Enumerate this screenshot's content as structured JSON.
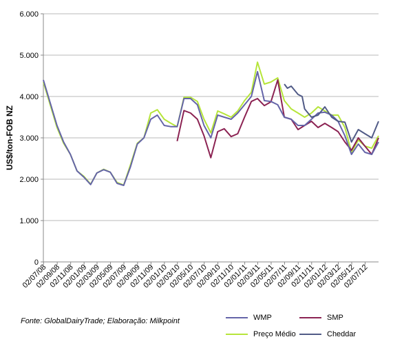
{
  "chart_data": {
    "type": "line",
    "ylabel": "US$/ton-FOB NZ",
    "ylim": [
      0,
      6000
    ],
    "yticks": [
      "0",
      "1.000",
      "2.000",
      "3.000",
      "4.000",
      "5.000",
      "6.000"
    ],
    "xlim": [
      "2008-07-01",
      "2012-09-01"
    ],
    "xtick_labels": [
      "02/07/08",
      "02/09/08",
      "02/11/08",
      "02/01/09",
      "02/03/09",
      "02/05/09",
      "02/07/09",
      "02/09/09",
      "02/11/09",
      "02/01/10",
      "02/03/10",
      "02/05/10",
      "02/07/10",
      "02/09/10",
      "02/11/10",
      "02/01/11",
      "02/03/11",
      "02/05/11",
      "02/07/11",
      "02/09/11",
      "02/11/11",
      "02/01/12",
      "02/03/12",
      "02/05/12",
      "02/07/12"
    ],
    "xtick_dates": [
      "2008-07-02",
      "2008-09-02",
      "2008-11-02",
      "2009-01-02",
      "2009-03-02",
      "2009-05-02",
      "2009-07-02",
      "2009-09-02",
      "2009-11-02",
      "2010-01-02",
      "2010-03-02",
      "2010-05-02",
      "2010-07-02",
      "2010-09-02",
      "2010-11-02",
      "2011-01-02",
      "2011-03-02",
      "2011-05-02",
      "2011-07-02",
      "2011-09-02",
      "2011-11-02",
      "2012-01-02",
      "2012-03-02",
      "2012-05-02",
      "2012-07-02"
    ],
    "legend_placement": "bottom",
    "grid": true,
    "series": [
      {
        "name": "WMP",
        "color": "#6464a8",
        "points": [
          [
            "2008-07-01",
            4400
          ],
          [
            "2008-08-01",
            3850
          ],
          [
            "2008-09-01",
            3300
          ],
          [
            "2008-10-01",
            2900
          ],
          [
            "2008-11-01",
            2600
          ],
          [
            "2008-12-01",
            2200
          ],
          [
            "2009-01-01",
            2050
          ],
          [
            "2009-02-01",
            1870
          ],
          [
            "2009-03-01",
            2150
          ],
          [
            "2009-04-01",
            2230
          ],
          [
            "2009-05-01",
            2170
          ],
          [
            "2009-06-01",
            1900
          ],
          [
            "2009-07-01",
            1850
          ],
          [
            "2009-08-01",
            2300
          ],
          [
            "2009-09-01",
            2850
          ],
          [
            "2009-10-01",
            3000
          ],
          [
            "2009-11-01",
            3450
          ],
          [
            "2009-12-01",
            3550
          ],
          [
            "2010-01-01",
            3300
          ],
          [
            "2010-02-01",
            3270
          ],
          [
            "2010-03-01",
            3270
          ],
          [
            "2010-04-01",
            3950
          ],
          [
            "2010-05-01",
            3950
          ],
          [
            "2010-06-01",
            3800
          ],
          [
            "2010-07-01",
            3300
          ],
          [
            "2010-08-01",
            3000
          ],
          [
            "2010-09-01",
            3550
          ],
          [
            "2010-10-01",
            3500
          ],
          [
            "2010-11-01",
            3450
          ],
          [
            "2010-12-01",
            3600
          ],
          [
            "2011-01-01",
            3800
          ],
          [
            "2011-02-01",
            4000
          ],
          [
            "2011-03-01",
            4600
          ],
          [
            "2011-04-01",
            3900
          ],
          [
            "2011-05-01",
            3880
          ],
          [
            "2011-06-01",
            3800
          ],
          [
            "2011-07-01",
            3500
          ],
          [
            "2011-08-01",
            3450
          ],
          [
            "2011-09-01",
            3300
          ],
          [
            "2011-10-01",
            3300
          ],
          [
            "2011-11-01",
            3450
          ],
          [
            "2011-12-01",
            3600
          ],
          [
            "2012-01-01",
            3620
          ],
          [
            "2012-02-01",
            3550
          ],
          [
            "2012-03-01",
            3400
          ],
          [
            "2012-04-01",
            3050
          ],
          [
            "2012-05-01",
            2600
          ],
          [
            "2012-06-01",
            2850
          ],
          [
            "2012-07-01",
            2650
          ],
          [
            "2012-08-01",
            2600
          ],
          [
            "2012-09-01",
            2900
          ]
        ]
      },
      {
        "name": "SMP",
        "color": "#8b2252",
        "points": [
          [
            "2010-03-01",
            2920
          ],
          [
            "2010-04-01",
            3660
          ],
          [
            "2010-05-01",
            3600
          ],
          [
            "2010-06-01",
            3450
          ],
          [
            "2010-07-01",
            3050
          ],
          [
            "2010-08-01",
            2520
          ],
          [
            "2010-09-01",
            3150
          ],
          [
            "2010-10-01",
            3220
          ],
          [
            "2010-11-01",
            3030
          ],
          [
            "2010-12-01",
            3100
          ],
          [
            "2011-01-01",
            3500
          ],
          [
            "2011-02-01",
            3880
          ],
          [
            "2011-03-01",
            3950
          ],
          [
            "2011-04-01",
            3780
          ],
          [
            "2011-05-01",
            3870
          ],
          [
            "2011-06-01",
            4400
          ],
          [
            "2011-07-01",
            3500
          ],
          [
            "2011-08-01",
            3450
          ],
          [
            "2011-09-01",
            3200
          ],
          [
            "2011-10-01",
            3300
          ],
          [
            "2011-11-01",
            3400
          ],
          [
            "2011-12-01",
            3250
          ],
          [
            "2012-01-01",
            3350
          ],
          [
            "2012-02-01",
            3250
          ],
          [
            "2012-03-01",
            3150
          ],
          [
            "2012-04-01",
            2900
          ],
          [
            "2012-05-01",
            2700
          ],
          [
            "2012-06-01",
            3000
          ],
          [
            "2012-07-01",
            2800
          ],
          [
            "2012-08-01",
            2600
          ],
          [
            "2012-09-01",
            3000
          ]
        ]
      },
      {
        "name": "Preço Médio",
        "color": "#b6e53a",
        "points": [
          [
            "2008-07-01",
            4350
          ],
          [
            "2008-08-01",
            3800
          ],
          [
            "2008-09-01",
            3250
          ],
          [
            "2008-10-01",
            2870
          ],
          [
            "2008-11-01",
            2600
          ],
          [
            "2008-12-01",
            2200
          ],
          [
            "2009-01-01",
            2070
          ],
          [
            "2009-02-01",
            1880
          ],
          [
            "2009-03-01",
            2150
          ],
          [
            "2009-04-01",
            2240
          ],
          [
            "2009-05-01",
            2170
          ],
          [
            "2009-06-01",
            1920
          ],
          [
            "2009-07-01",
            1860
          ],
          [
            "2009-08-01",
            2350
          ],
          [
            "2009-09-01",
            2870
          ],
          [
            "2009-10-01",
            3000
          ],
          [
            "2009-11-01",
            3600
          ],
          [
            "2009-12-01",
            3680
          ],
          [
            "2010-01-01",
            3450
          ],
          [
            "2010-02-01",
            3350
          ],
          [
            "2010-03-01",
            3270
          ],
          [
            "2010-04-01",
            3980
          ],
          [
            "2010-05-01",
            3980
          ],
          [
            "2010-06-01",
            3880
          ],
          [
            "2010-07-01",
            3450
          ],
          [
            "2010-08-01",
            3120
          ],
          [
            "2010-09-01",
            3650
          ],
          [
            "2010-10-01",
            3580
          ],
          [
            "2010-11-01",
            3500
          ],
          [
            "2010-12-01",
            3650
          ],
          [
            "2011-01-01",
            3900
          ],
          [
            "2011-02-01",
            4100
          ],
          [
            "2011-03-01",
            4830
          ],
          [
            "2011-04-01",
            4300
          ],
          [
            "2011-05-01",
            4350
          ],
          [
            "2011-06-01",
            4450
          ],
          [
            "2011-07-01",
            3900
          ],
          [
            "2011-08-01",
            3700
          ],
          [
            "2011-09-01",
            3600
          ],
          [
            "2011-10-01",
            3500
          ],
          [
            "2011-11-01",
            3600
          ],
          [
            "2011-12-01",
            3750
          ],
          [
            "2012-01-01",
            3650
          ],
          [
            "2012-02-01",
            3550
          ],
          [
            "2012-03-01",
            3550
          ],
          [
            "2012-04-01",
            3250
          ],
          [
            "2012-05-01",
            2650
          ],
          [
            "2012-06-01",
            2950
          ],
          [
            "2012-07-01",
            2800
          ],
          [
            "2012-08-01",
            2750
          ],
          [
            "2012-09-01",
            3050
          ]
        ]
      },
      {
        "name": "Cheddar",
        "color": "#505a86",
        "points": [
          [
            "2011-07-01",
            4300
          ],
          [
            "2011-07-15",
            4200
          ],
          [
            "2011-08-01",
            4250
          ],
          [
            "2011-09-01",
            4050
          ],
          [
            "2011-09-20",
            4000
          ],
          [
            "2011-10-01",
            3700
          ],
          [
            "2011-11-01",
            3500
          ],
          [
            "2011-12-01",
            3550
          ],
          [
            "2012-01-01",
            3750
          ],
          [
            "2012-02-01",
            3500
          ],
          [
            "2012-03-01",
            3400
          ],
          [
            "2012-04-01",
            3380
          ],
          [
            "2012-05-01",
            2900
          ],
          [
            "2012-06-01",
            3200
          ],
          [
            "2012-07-01",
            3100
          ],
          [
            "2012-08-01",
            3000
          ],
          [
            "2012-09-01",
            3400
          ]
        ]
      }
    ],
    "source": "Fonte: GlobalDairyTrade;  Elaboração: Milkpoint"
  }
}
